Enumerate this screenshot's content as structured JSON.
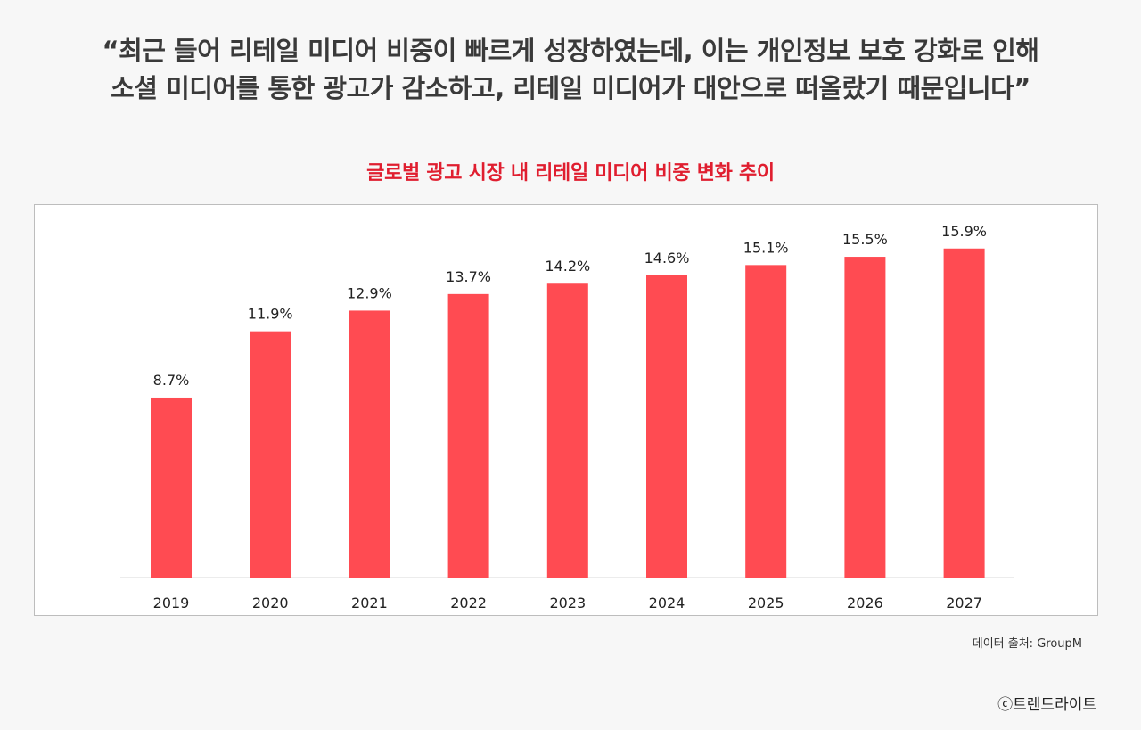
{
  "quote": {
    "line1": "“최근 들어 리테일 미디어 비중이 빠르게 성장하였는데, 이는 개인정보 보호 강화로 인해",
    "line2": "소셜 미디어를 통한 광고가 감소하고, 리테일 미디어가 대안으로 떠올랐기 때문입니다”"
  },
  "chart_data": {
    "type": "bar",
    "title": "글로벌 광고 시장 내 리테일 미디어 비중 변화 추이",
    "categories": [
      "2019",
      "2020",
      "2021",
      "2022",
      "2023",
      "2024",
      "2025",
      "2026",
      "2027"
    ],
    "values": [
      8.7,
      11.9,
      12.9,
      13.7,
      14.2,
      14.6,
      15.1,
      15.5,
      15.9
    ],
    "labels": [
      "8.7%",
      "11.9%",
      "12.9%",
      "13.7%",
      "14.2%",
      "14.6%",
      "15.1%",
      "15.5%",
      "15.9%"
    ],
    "xlabel": "",
    "ylabel": "",
    "ylim": [
      0,
      18
    ],
    "bar_color": "#ff4b52",
    "grid": false,
    "legend": "none"
  },
  "footer": {
    "source": "데이터 출처: GroupM",
    "copyright": "ⓒ트렌드라이트"
  }
}
